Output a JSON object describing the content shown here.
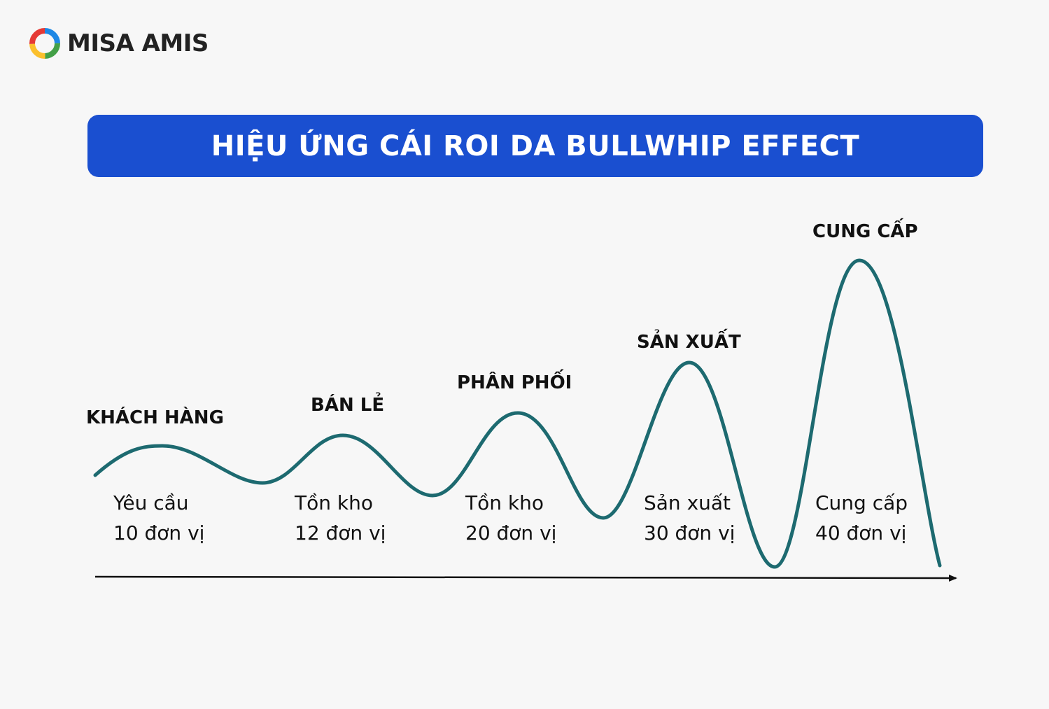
{
  "brand": {
    "name": "MISA AMIS",
    "icon": "misa-amis-logo-icon",
    "colors": [
      "#e53935",
      "#fbc02d",
      "#43a047",
      "#1e88e5"
    ]
  },
  "title": "HIỆU ỨNG CÁI ROI DA BULLWHIP EFFECT",
  "colors": {
    "title_bg": "#1a4fd0",
    "curve": "#1d6a70",
    "axis": "#111111",
    "background": "#f7f7f7"
  },
  "stages": [
    {
      "label": "KHÁCH HÀNG",
      "desc_line1": "Yêu cầu",
      "desc_line2": "10 đơn vị"
    },
    {
      "label": "BÁN LẺ",
      "desc_line1": "Tồn kho",
      "desc_line2": "12 đơn vị"
    },
    {
      "label": "PHÂN PHỐI",
      "desc_line1": "Tồn kho",
      "desc_line2": "20 đơn vị"
    },
    {
      "label": "SẢN XUẤT",
      "desc_line1": "Sản xuất",
      "desc_line2": "30 đơn vị"
    },
    {
      "label": "CUNG CẤP",
      "desc_line1": "Cung cấp",
      "desc_line2": "40 đơn vị"
    }
  ]
}
